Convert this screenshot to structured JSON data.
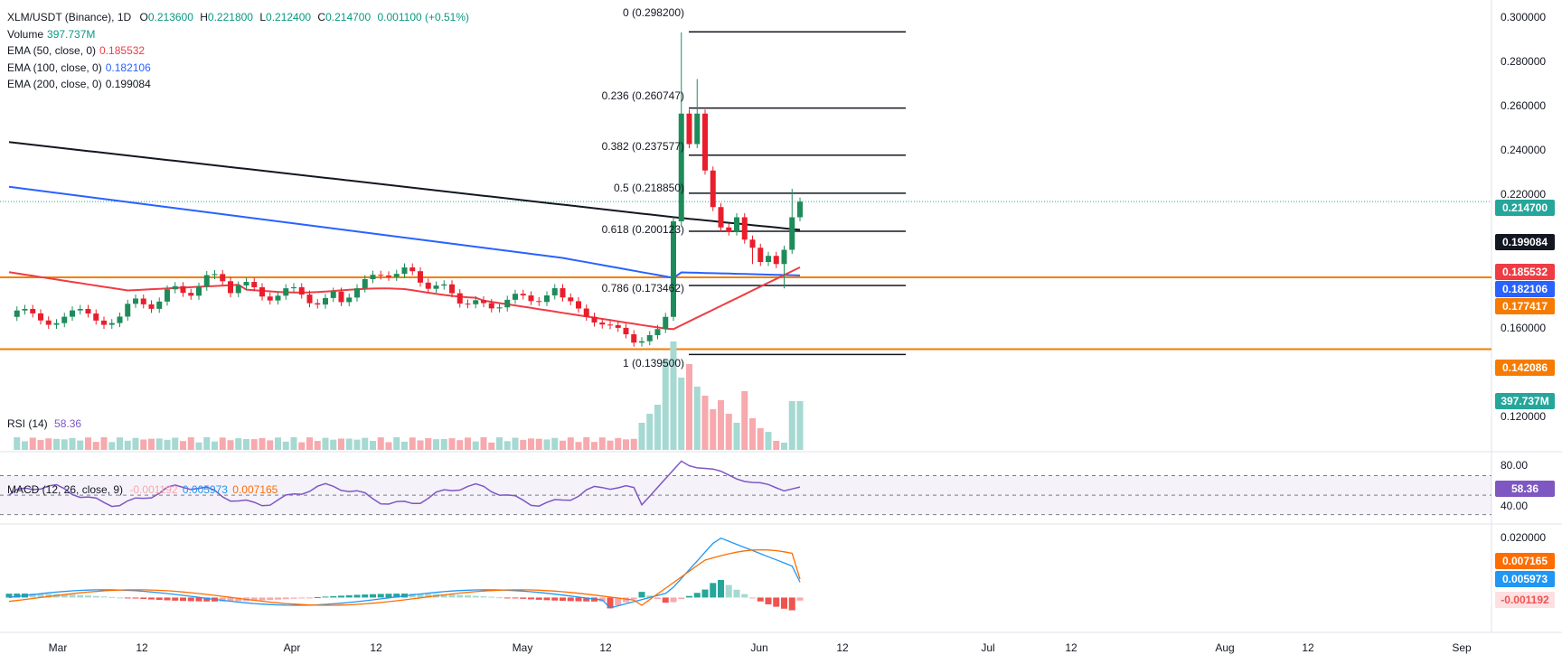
{
  "header": {
    "symbol": "XLM/USDT (Binance), 1D",
    "open_label": "O",
    "open": "0.213600",
    "high_label": "H",
    "high": "0.221800",
    "low_label": "L",
    "low": "0.212400",
    "close_label": "C",
    "close": "0.214700",
    "change": "0.001100 (+0.51%)"
  },
  "legend": {
    "volume_label": "Volume",
    "volume_value": "397.737M",
    "ema50_label": "EMA (50, close, 0)",
    "ema50_value": "0.185532",
    "ema100_label": "EMA (100, close, 0)",
    "ema100_value": "0.182106",
    "ema200_label": "EMA (200, close, 0)",
    "ema200_value": "0.199084"
  },
  "rsi_legend": {
    "label": "RSI (14)",
    "value": "58.36"
  },
  "macd_legend": {
    "label": "MACD (12, 26, close, 9)",
    "hist": "-0.001192",
    "macd": "0.005973",
    "signal": "0.007165"
  },
  "badges": {
    "close": "0.214700",
    "ema200": "0.199084",
    "ema50": "0.185532",
    "ema100": "0.182106",
    "support_upper": "0.177417",
    "support_lower": "0.142086",
    "volume": "397.737M",
    "rsi": "58.36",
    "macd_signal": "0.007165",
    "macd_line": "0.005973",
    "macd_hist": "-0.001192"
  },
  "colors": {
    "up": "#26a69a",
    "down": "#ef5350",
    "up_bar": "#1e8c5a",
    "down_bar": "#e91e2c",
    "ema50": "#ef3c44",
    "ema100": "#2962ff",
    "ema200": "#131722",
    "support": "#f57c00",
    "rsi": "#7e57c2",
    "macd": "#2196f3",
    "signal": "#ff6d00",
    "vol_up": "#a5d9d2",
    "vol_down": "#f7a9ad"
  },
  "price_axis": [
    "0.300000",
    "0.280000",
    "0.260000",
    "0.240000",
    "0.220000",
    "0.160000",
    "0.120000"
  ],
  "rsi_axis": [
    "80.00",
    "40.00"
  ],
  "macd_axis": [
    "0.020000"
  ],
  "time_axis": [
    "Mar",
    "12",
    "Apr",
    "12",
    "May",
    "12",
    "Jun",
    "12",
    "Jul",
    "12",
    "Aug",
    "12",
    "Sep"
  ],
  "chart_data": {
    "type": "candlestick",
    "fib_levels": [
      {
        "ratio": "0",
        "price": 0.2982,
        "label": "0 (0.298200)"
      },
      {
        "ratio": "0.236",
        "price": 0.260747,
        "label": "0.236 (0.260747)"
      },
      {
        "ratio": "0.382",
        "price": 0.237577,
        "label": "0.382 (0.237577)"
      },
      {
        "ratio": "0.5",
        "price": 0.21885,
        "label": "0.5 (0.218850)"
      },
      {
        "ratio": "0.618",
        "price": 0.200123,
        "label": "0.618 (0.200123)"
      },
      {
        "ratio": "0.786",
        "price": 0.173462,
        "label": "0.786 (0.173462)"
      },
      {
        "ratio": "1",
        "price": 0.1395,
        "label": "1 (0.139500)"
      }
    ],
    "support_lines": [
      0.177417,
      0.142086
    ],
    "last_close": 0.2147,
    "ylim": [
      0.105,
      0.305
    ],
    "rsi_levels": [
      70,
      50,
      30
    ],
    "rsi_ylim": [
      25,
      90
    ],
    "macd_ylim": [
      -0.01,
      0.025
    ]
  }
}
